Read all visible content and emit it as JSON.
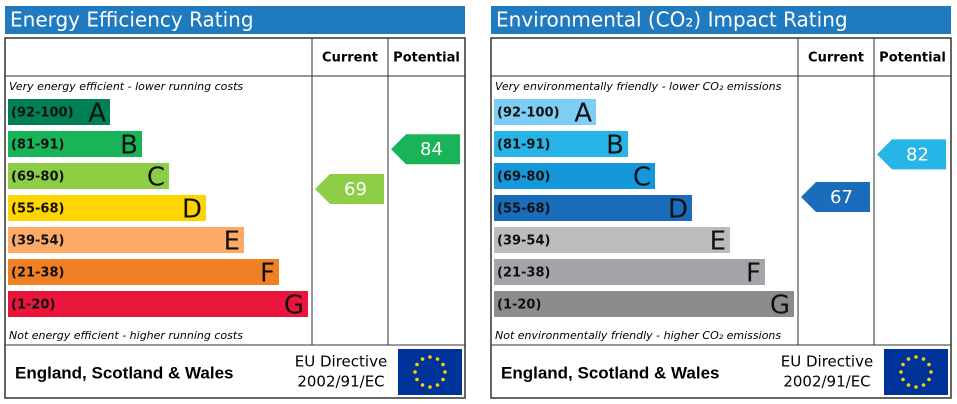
{
  "chart_data": [
    {
      "type": "epc",
      "title": "Energy Efficiency Rating",
      "columns": [
        "Current",
        "Potential"
      ],
      "top_note": "Very energy efficient - lower running costs",
      "bottom_note": "Not energy efficient - higher running costs",
      "categories": [
        "(92-100)",
        "(81-91)",
        "(69-80)",
        "(55-68)",
        "(39-54)",
        "(21-38)",
        "(1-20)"
      ],
      "letters": [
        "A",
        "B",
        "C",
        "D",
        "E",
        "F",
        "G"
      ],
      "colors": [
        "#008054",
        "#19b459",
        "#8dce46",
        "#ffd500",
        "#fcaa65",
        "#ef8023",
        "#e9153b"
      ],
      "current": 69,
      "potential": 84,
      "footer": "England, Scotland & Wales",
      "directive": [
        "EU Directive",
        "2002/91/EC"
      ]
    },
    {
      "type": "epc",
      "title": "Environmental (CO₂) Impact Rating",
      "columns": [
        "Current",
        "Potential"
      ],
      "top_note": "Very environmentally friendly - lower CO₂ emissions",
      "bottom_note": "Not environmentally friendly - higher CO₂ emissions",
      "categories": [
        "(92-100)",
        "(81-91)",
        "(69-80)",
        "(55-68)",
        "(39-54)",
        "(21-38)",
        "(1-20)"
      ],
      "letters": [
        "A",
        "B",
        "C",
        "D",
        "E",
        "F",
        "G"
      ],
      "colors": [
        "#7dcdf5",
        "#27b5e8",
        "#1498d9",
        "#1a6dbb",
        "#bbbcbe",
        "#a4a5a8",
        "#8b8c8e"
      ],
      "current": 67,
      "potential": 82,
      "footer": "England, Scotland & Wales",
      "directive": [
        "EU Directive",
        "2002/91/EC"
      ]
    }
  ]
}
